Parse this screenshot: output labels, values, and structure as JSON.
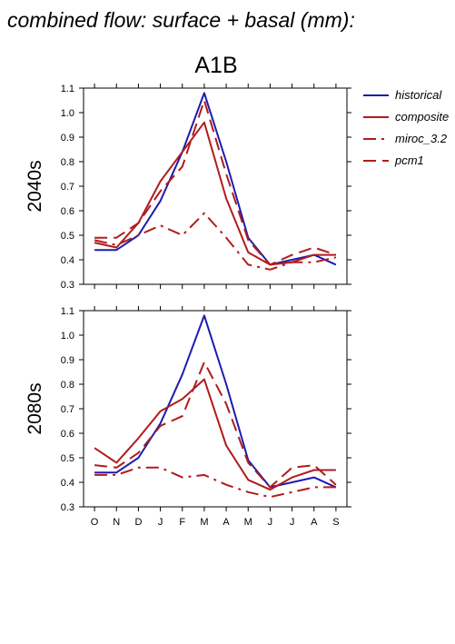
{
  "header": {
    "title": "combined flow: surface + basal (mm):"
  },
  "chart_data": {
    "type": "line",
    "title": "A1B",
    "categories": [
      "O",
      "N",
      "D",
      "J",
      "F",
      "M",
      "A",
      "M",
      "J",
      "J",
      "A",
      "S"
    ],
    "ylim": [
      0.3,
      1.1
    ],
    "yticks": [
      "0.3",
      "0.4",
      "0.5",
      "0.6",
      "0.7",
      "0.8",
      "0.9",
      "1.0",
      "1.1"
    ],
    "legend": {
      "placement": "right",
      "entries": [
        {
          "name": "historical",
          "color": "#1c1cb0",
          "dash": "solid"
        },
        {
          "name": "composite",
          "color": "#b01c1c",
          "dash": "solid"
        },
        {
          "name": "miroc_3.2",
          "color": "#b01c1c",
          "dash": "dashdot"
        },
        {
          "name": "pcm1",
          "color": "#b01c1c",
          "dash": "dash"
        }
      ]
    },
    "panels": [
      {
        "row_label": "2040s",
        "series": [
          {
            "name": "historical",
            "values": [
              0.44,
              0.44,
              0.5,
              0.64,
              0.84,
              1.08,
              0.8,
              0.49,
              0.38,
              0.4,
              0.42,
              0.38
            ]
          },
          {
            "name": "composite",
            "values": [
              0.47,
              0.45,
              0.55,
              0.72,
              0.84,
              0.96,
              0.65,
              0.43,
              0.38,
              0.39,
              0.42,
              0.42
            ]
          },
          {
            "name": "miroc_3.2",
            "values": [
              0.48,
              0.46,
              0.5,
              0.54,
              0.5,
              0.59,
              0.49,
              0.38,
              0.36,
              0.39,
              0.39,
              0.41
            ]
          },
          {
            "name": "pcm1",
            "values": [
              0.49,
              0.49,
              0.55,
              0.68,
              0.78,
              1.05,
              0.75,
              0.48,
              0.38,
              0.42,
              0.45,
              0.42
            ]
          }
        ]
      },
      {
        "row_label": "2080s",
        "series": [
          {
            "name": "historical",
            "values": [
              0.44,
              0.44,
              0.5,
              0.64,
              0.84,
              1.08,
              0.8,
              0.49,
              0.38,
              0.4,
              0.42,
              0.38
            ]
          },
          {
            "name": "composite",
            "values": [
              0.54,
              0.48,
              0.58,
              0.69,
              0.74,
              0.82,
              0.55,
              0.41,
              0.37,
              0.42,
              0.45,
              0.45
            ]
          },
          {
            "name": "miroc_3.2",
            "values": [
              0.43,
              0.43,
              0.46,
              0.46,
              0.42,
              0.43,
              0.39,
              0.36,
              0.34,
              0.36,
              0.38,
              0.38
            ]
          },
          {
            "name": "pcm1",
            "values": [
              0.47,
              0.46,
              0.52,
              0.63,
              0.67,
              0.89,
              0.72,
              0.48,
              0.38,
              0.46,
              0.47,
              0.39
            ]
          }
        ]
      }
    ]
  }
}
